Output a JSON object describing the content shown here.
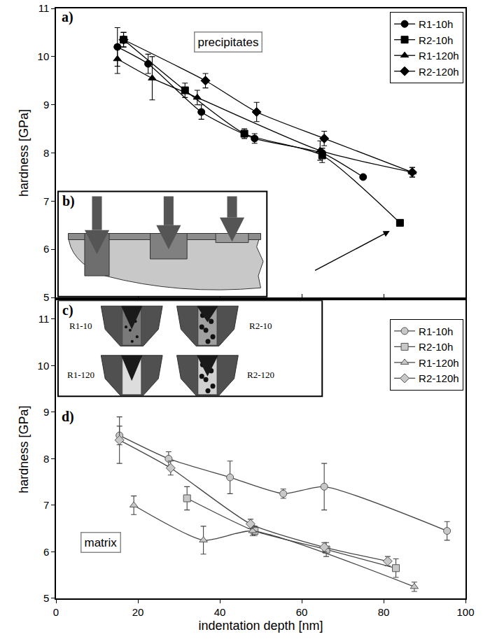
{
  "chart_data": [
    {
      "type": "line",
      "panel_label": "a)",
      "annotation": "precipitates",
      "y_label": "hardness [GPa]",
      "xlim": [
        0,
        100
      ],
      "xticks": [
        0,
        20,
        40,
        60,
        80,
        100
      ],
      "ylim": [
        5,
        11
      ],
      "yticks": [
        5,
        6,
        7,
        8,
        9,
        10,
        11
      ],
      "tick_labels": "y",
      "grid": false,
      "legend": "top right",
      "inset": {
        "label": "b)"
      },
      "series": [
        {
          "name": "R1-10h",
          "color": "#000000",
          "marker": "circle",
          "x": [
            15,
            22.5,
            35.5,
            48.5,
            65,
            75
          ],
          "values": [
            10.2,
            9.85,
            8.85,
            8.3,
            8.0,
            7.5
          ],
          "errors": [
            0.4,
            0.2,
            0.15,
            0.1,
            0.1,
            0
          ]
        },
        {
          "name": "R2-10h",
          "color": "#000000",
          "marker": "square",
          "x": [
            16.5,
            31.5,
            46,
            65,
            84
          ],
          "values": [
            10.35,
            9.3,
            8.4,
            7.95,
            6.55
          ],
          "errors": [
            0.15,
            0.15,
            0.1,
            0.15,
            0
          ]
        },
        {
          "name": "R1-120h",
          "color": "#000000",
          "marker": "triangle",
          "x": [
            15,
            23.5,
            34.5,
            64.5,
            87
          ],
          "values": [
            9.95,
            9.55,
            9.15,
            8.05,
            7.6
          ],
          "errors": [
            0.3,
            0.45,
            0.15,
            0.2,
            0.1
          ]
        },
        {
          "name": "R2-120h",
          "color": "#000000",
          "marker": "diamond",
          "x": [
            16.5,
            36.5,
            49,
            65.5,
            87
          ],
          "values": [
            10.35,
            9.5,
            8.85,
            8.3,
            7.6
          ],
          "errors": [
            0.15,
            0.15,
            0.2,
            0.15,
            0.1
          ]
        }
      ]
    },
    {
      "type": "line",
      "panel_label": "d)",
      "annotation": "matrix",
      "x_label": "indentation depth [nm]",
      "y_label": "hardness [GPa]",
      "xlim": [
        0,
        100
      ],
      "xticks": [
        0,
        20,
        40,
        60,
        80,
        100
      ],
      "ylim": [
        5,
        11.4
      ],
      "yticks": [
        5,
        6,
        7,
        8,
        9,
        10,
        11
      ],
      "grid": false,
      "legend": "top right",
      "inset": {
        "label": "c)",
        "diagrams": [
          "R1-10",
          "R2-10",
          "R1-120",
          "R2-120"
        ]
      },
      "series": [
        {
          "name": "R1-10h",
          "color": "#c8c8c8",
          "marker": "circle",
          "x": [
            15.5,
            27.5,
            42.5,
            55.5,
            65.5,
            95.5
          ],
          "values": [
            8.5,
            8.0,
            7.6,
            7.25,
            7.4,
            6.45
          ],
          "errors": [
            0.2,
            0.15,
            0.35,
            0.1,
            0.5,
            0.2
          ]
        },
        {
          "name": "R2-10h",
          "color": "#c8c8c8",
          "marker": "square",
          "x": [
            32,
            48.5,
            66,
            83
          ],
          "values": [
            7.15,
            6.45,
            6.05,
            5.65
          ],
          "errors": [
            0.25,
            0.1,
            0.15,
            0.2
          ]
        },
        {
          "name": "R1-120h",
          "color": "#c8c8c8",
          "marker": "triangle",
          "x": [
            19,
            36,
            48,
            87.5
          ],
          "values": [
            7.0,
            6.25,
            6.45,
            5.25
          ],
          "errors": [
            0.2,
            0.3,
            0.1,
            0.1
          ]
        },
        {
          "name": "R2-120h",
          "color": "#c8c8c8",
          "marker": "diamond",
          "x": [
            15.5,
            28,
            47.5,
            65.5,
            81
          ],
          "values": [
            8.4,
            7.8,
            6.6,
            6.1,
            5.8
          ],
          "errors": [
            0.5,
            0.15,
            0.1,
            0.1,
            0.1
          ]
        }
      ]
    }
  ]
}
